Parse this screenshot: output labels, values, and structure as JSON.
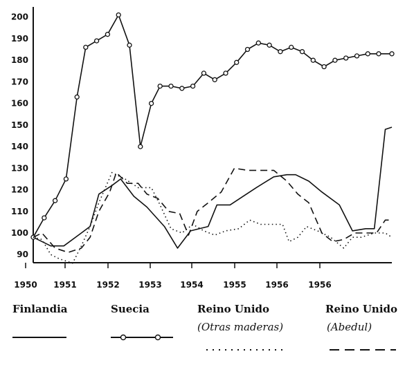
{
  "chart_data": {
    "type": "line",
    "ylim": [
      85,
      202
    ],
    "yticks": [
      90,
      100,
      110,
      120,
      130,
      140,
      150,
      160,
      170,
      180,
      190,
      200
    ],
    "xticks": [
      "1950",
      "1951",
      "1952",
      "1953",
      "1954",
      "1955",
      "1956",
      "1956"
    ],
    "grid": false,
    "legend_position": "bottom",
    "series": [
      {
        "name": "Finlandia",
        "style": "solid",
        "markers": false,
        "points": [
          [
            1950.0,
            98
          ],
          [
            1950.4,
            94
          ],
          [
            1950.7,
            94
          ],
          [
            1951.1,
            100
          ],
          [
            1951.3,
            103
          ],
          [
            1951.5,
            118
          ],
          [
            1951.8,
            122
          ],
          [
            1952.0,
            125
          ],
          [
            1952.3,
            117
          ],
          [
            1952.6,
            112
          ],
          [
            1953.0,
            103
          ],
          [
            1953.3,
            93
          ],
          [
            1953.6,
            101
          ],
          [
            1954.0,
            103
          ],
          [
            1954.2,
            113
          ],
          [
            1954.5,
            113
          ],
          [
            1954.8,
            117
          ],
          [
            1955.1,
            121
          ],
          [
            1955.5,
            126
          ],
          [
            1955.8,
            127
          ],
          [
            1956.0,
            127
          ],
          [
            1956.3,
            124
          ],
          [
            1956.6,
            119
          ],
          [
            1957.0,
            113
          ],
          [
            1957.3,
            101
          ],
          [
            1957.6,
            102
          ],
          [
            1957.8,
            102
          ],
          [
            1958.05,
            148
          ],
          [
            1958.2,
            149
          ]
        ]
      },
      {
        "name": "Suecia",
        "style": "solid",
        "markers": true,
        "points": [
          [
            1950.0,
            98
          ],
          [
            1950.25,
            107
          ],
          [
            1950.5,
            115
          ],
          [
            1950.75,
            125
          ],
          [
            1951.0,
            163
          ],
          [
            1951.2,
            186
          ],
          [
            1951.45,
            189
          ],
          [
            1951.7,
            192
          ],
          [
            1951.95,
            201
          ],
          [
            1952.2,
            187
          ],
          [
            1952.45,
            140
          ],
          [
            1952.7,
            160
          ],
          [
            1952.9,
            168
          ],
          [
            1953.15,
            168
          ],
          [
            1953.4,
            167
          ],
          [
            1953.65,
            168
          ],
          [
            1953.9,
            174
          ],
          [
            1954.15,
            171
          ],
          [
            1954.4,
            174
          ],
          [
            1954.65,
            179
          ],
          [
            1954.9,
            185
          ],
          [
            1955.15,
            188
          ],
          [
            1955.4,
            187
          ],
          [
            1955.65,
            184
          ],
          [
            1955.9,
            186
          ],
          [
            1956.15,
            184
          ],
          [
            1956.4,
            180
          ],
          [
            1956.65,
            177
          ],
          [
            1956.9,
            180
          ],
          [
            1957.15,
            181
          ],
          [
            1957.4,
            182
          ],
          [
            1957.65,
            183
          ],
          [
            1957.9,
            183
          ],
          [
            1958.2,
            183
          ]
        ]
      },
      {
        "name": "Reino Unido (Otras maderas)",
        "style": "dotted",
        "markers": false,
        "points": [
          [
            1950.0,
            98
          ],
          [
            1950.2,
            97
          ],
          [
            1950.4,
            90
          ],
          [
            1950.6,
            88
          ],
          [
            1950.9,
            86
          ],
          [
            1951.1,
            94
          ],
          [
            1951.3,
            103
          ],
          [
            1951.5,
            114
          ],
          [
            1951.8,
            128
          ],
          [
            1952.1,
            125
          ],
          [
            1952.4,
            121
          ],
          [
            1952.7,
            121
          ],
          [
            1952.9,
            113
          ],
          [
            1953.15,
            102
          ],
          [
            1953.4,
            100
          ],
          [
            1953.65,
            104
          ],
          [
            1953.9,
            101
          ],
          [
            1954.15,
            99
          ],
          [
            1954.4,
            101
          ],
          [
            1954.7,
            102
          ],
          [
            1954.95,
            106
          ],
          [
            1955.2,
            104
          ],
          [
            1955.5,
            104
          ],
          [
            1955.7,
            104
          ],
          [
            1955.85,
            96
          ],
          [
            1956.05,
            98
          ],
          [
            1956.25,
            103
          ],
          [
            1956.5,
            101
          ],
          [
            1956.8,
            98
          ],
          [
            1957.1,
            93
          ],
          [
            1957.3,
            98
          ],
          [
            1957.5,
            98
          ],
          [
            1957.8,
            100
          ],
          [
            1958.05,
            100
          ],
          [
            1958.2,
            98
          ]
        ]
      },
      {
        "name": "Reino Unido (Abedul)",
        "style": "dashed",
        "markers": false,
        "points": [
          [
            1950.0,
            98
          ],
          [
            1950.2,
            100
          ],
          [
            1950.5,
            93
          ],
          [
            1950.8,
            91
          ],
          [
            1951.1,
            93
          ],
          [
            1951.3,
            98
          ],
          [
            1951.5,
            110
          ],
          [
            1951.75,
            119
          ],
          [
            1951.9,
            128
          ],
          [
            1952.15,
            123
          ],
          [
            1952.4,
            123
          ],
          [
            1952.6,
            118
          ],
          [
            1952.85,
            116
          ],
          [
            1953.1,
            110
          ],
          [
            1953.35,
            109
          ],
          [
            1953.55,
            99
          ],
          [
            1953.75,
            110
          ],
          [
            1954.0,
            114
          ],
          [
            1954.3,
            119
          ],
          [
            1954.6,
            130
          ],
          [
            1954.9,
            129
          ],
          [
            1955.2,
            129
          ],
          [
            1955.5,
            129
          ],
          [
            1955.8,
            124
          ],
          [
            1956.05,
            118
          ],
          [
            1956.3,
            114
          ],
          [
            1956.6,
            100
          ],
          [
            1956.85,
            96
          ],
          [
            1957.1,
            97
          ],
          [
            1957.35,
            100
          ],
          [
            1957.6,
            100
          ],
          [
            1957.85,
            100
          ],
          [
            1958.05,
            106
          ],
          [
            1958.2,
            106
          ]
        ]
      }
    ]
  },
  "legend": [
    {
      "label": "Finlandia",
      "sublabel": "",
      "style": "solid",
      "markers": false
    },
    {
      "label": "Suecia",
      "sublabel": "",
      "style": "solid",
      "markers": true
    },
    {
      "label": "Reino Unido",
      "sublabel": "(Otras maderas)",
      "style": "dotted",
      "markers": false
    },
    {
      "label": "Reino Unido",
      "sublabel": "(Abedul)",
      "style": "dashed",
      "markers": false
    }
  ]
}
